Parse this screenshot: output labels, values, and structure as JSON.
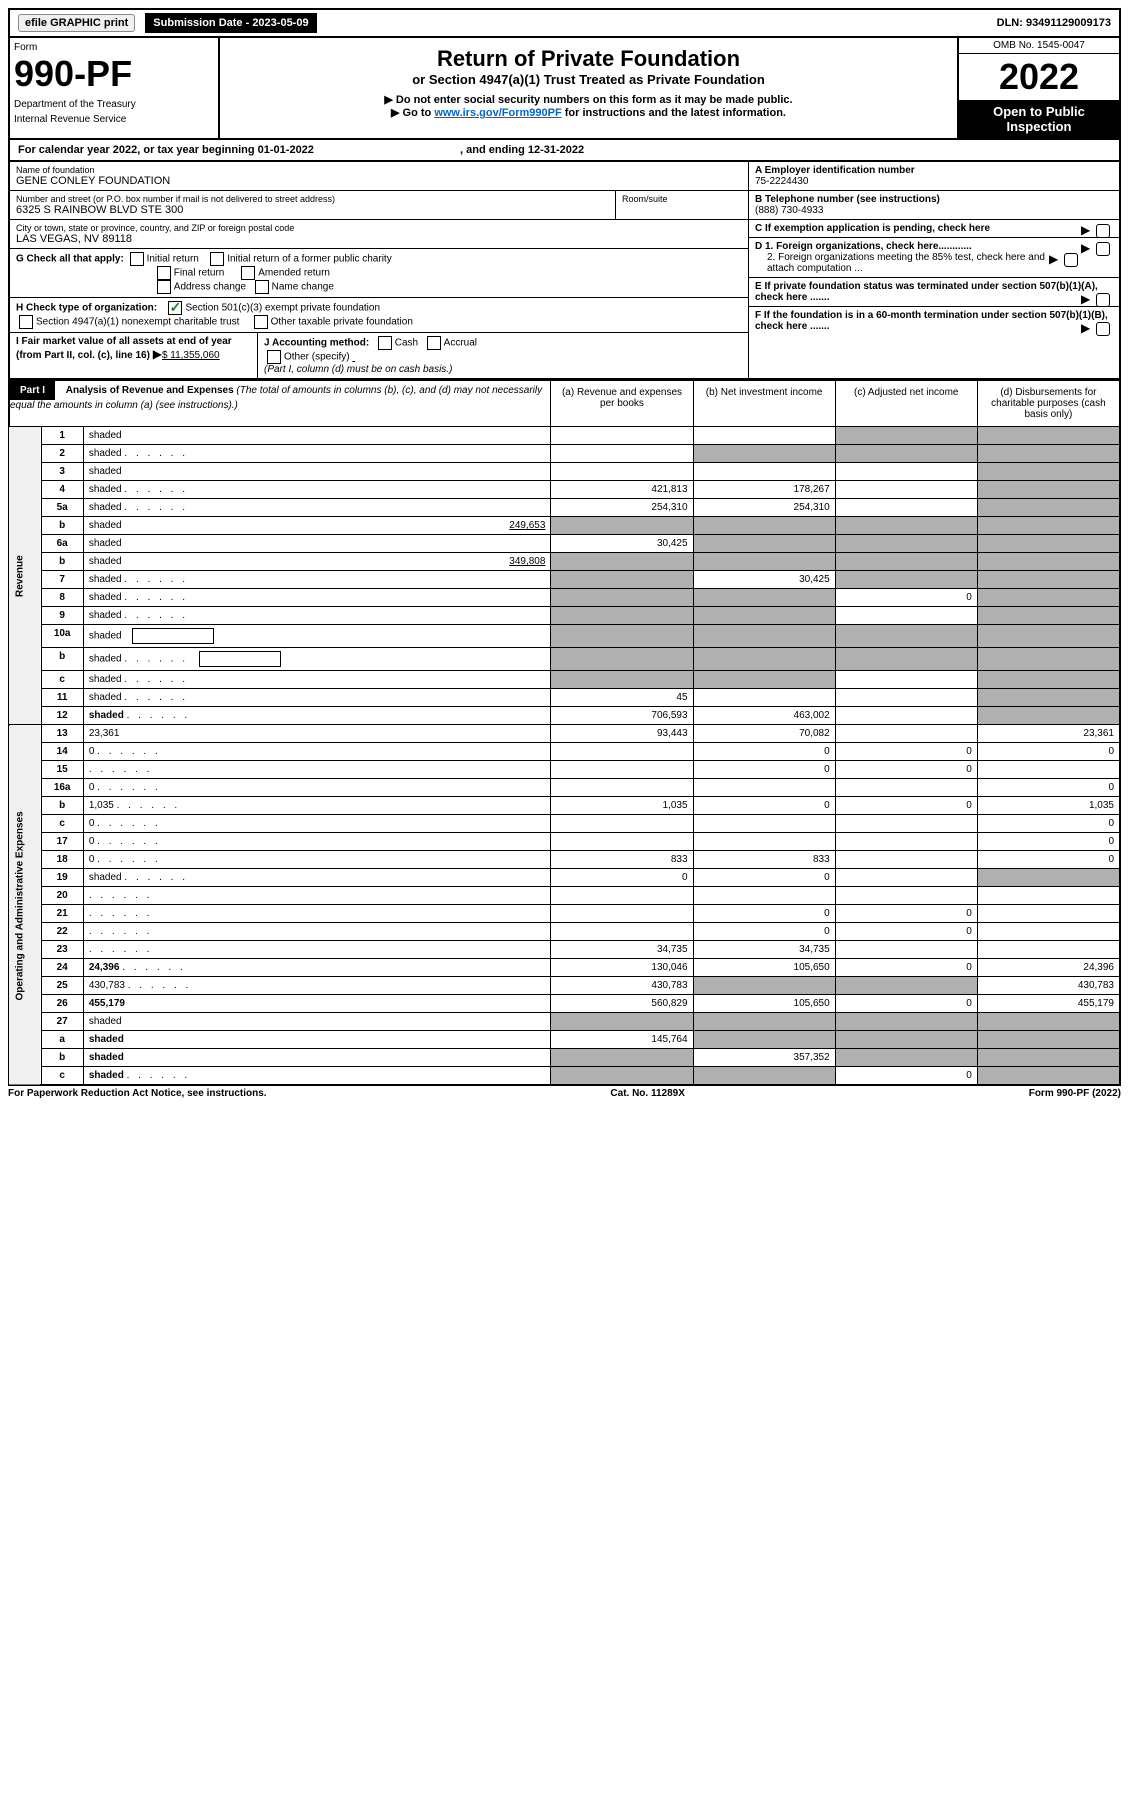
{
  "topbar": {
    "efile": "efile GRAPHIC print",
    "sub_label": "Submission Date - 2023-05-09",
    "dln": "DLN: 93491129009173"
  },
  "header": {
    "form_label": "Form",
    "form_num": "990-PF",
    "dept1": "Department of the Treasury",
    "dept2": "Internal Revenue Service",
    "title1": "Return of Private Foundation",
    "title2": "or Section 4947(a)(1) Trust Treated as Private Foundation",
    "warn": "▶ Do not enter social security numbers on this form as it may be made public.",
    "goto": "▶ Go to ",
    "goto_link": "www.irs.gov/Form990PF",
    "goto_rest": " for instructions and the latest information.",
    "omb": "OMB No. 1545-0047",
    "year": "2022",
    "open1": "Open to Public",
    "open2": "Inspection"
  },
  "cal": {
    "text1": "For calendar year 2022, or tax year beginning 01-01-2022",
    "text2": ", and ending 12-31-2022"
  },
  "info": {
    "name_label": "Name of foundation",
    "name": "GENE CONLEY FOUNDATION",
    "addr_label": "Number and street (or P.O. box number if mail is not delivered to street address)",
    "addr": "6325 S RAINBOW BLVD STE 300",
    "room_label": "Room/suite",
    "city_label": "City or town, state or province, country, and ZIP or foreign postal code",
    "city": "LAS VEGAS, NV  89118",
    "a_label": "A Employer identification number",
    "a_val": "75-2224430",
    "b_label": "B Telephone number (see instructions)",
    "b_val": "(888) 730-4933",
    "c_label": "C If exemption application is pending, check here",
    "d1": "D 1. Foreign organizations, check here............",
    "d2": "2. Foreign organizations meeting the 85% test, check here and attach computation ...",
    "e_label": "E  If private foundation status was terminated under section 507(b)(1)(A), check here .......",
    "f_label": "F  If the foundation is in a 60-month termination under section 507(b)(1)(B), check here .......",
    "g_label": "G Check all that apply:",
    "g_opts": [
      "Initial return",
      "Initial return of a former public charity",
      "Final return",
      "Amended return",
      "Address change",
      "Name change"
    ],
    "h_label": "H Check type of organization:",
    "h1": "Section 501(c)(3) exempt private foundation",
    "h2": "Section 4947(a)(1) nonexempt charitable trust",
    "h3": "Other taxable private foundation",
    "i_label": "I Fair market value of all assets at end of year (from Part II, col. (c), line 16)",
    "i_val": "$  11,355,060",
    "j_label": "J Accounting method:",
    "j_cash": "Cash",
    "j_acc": "Accrual",
    "j_other": "Other (specify)",
    "j_note": "(Part I, column (d) must be on cash basis.)"
  },
  "part1": {
    "label": "Part I",
    "title": "Analysis of Revenue and Expenses",
    "note": "(The total of amounts in columns (b), (c), and (d) may not necessarily equal the amounts in column (a) (see instructions).)",
    "cols": {
      "a": "(a)   Revenue and expenses per books",
      "b": "(b)   Net investment income",
      "c": "(c)   Adjusted net income",
      "d": "(d)   Disbursements for charitable purposes (cash basis only)"
    }
  },
  "side": {
    "rev": "Revenue",
    "exp": "Operating and Administrative Expenses"
  },
  "rows": [
    {
      "n": "1",
      "d": "shaded",
      "a": "",
      "b": "",
      "c": "shaded"
    },
    {
      "n": "2",
      "d": "shaded",
      "a": "",
      "b": "shaded",
      "c": "shaded",
      "dots": true
    },
    {
      "n": "3",
      "d": "shaded",
      "a": "",
      "b": "",
      "c": ""
    },
    {
      "n": "4",
      "d": "shaded",
      "a": "421,813",
      "b": "178,267",
      "c": "",
      "dots": true
    },
    {
      "n": "5a",
      "d": "shaded",
      "a": "254,310",
      "b": "254,310",
      "c": "",
      "dots": true
    },
    {
      "n": "b",
      "d": "shaded",
      "inline": "249,653",
      "a": "shaded",
      "b": "shaded",
      "c": "shaded"
    },
    {
      "n": "6a",
      "d": "shaded",
      "a": "30,425",
      "b": "shaded",
      "c": "shaded"
    },
    {
      "n": "b",
      "d": "shaded",
      "inline": "349,808",
      "a": "shaded",
      "b": "shaded",
      "c": "shaded"
    },
    {
      "n": "7",
      "d": "shaded",
      "a": "shaded",
      "b": "30,425",
      "c": "shaded",
      "dots": true
    },
    {
      "n": "8",
      "d": "shaded",
      "a": "shaded",
      "b": "shaded",
      "c": "0",
      "dots": true
    },
    {
      "n": "9",
      "d": "shaded",
      "a": "shaded",
      "b": "shaded",
      "c": "",
      "dots": true
    },
    {
      "n": "10a",
      "d": "shaded",
      "a": "shaded",
      "b": "shaded",
      "c": "shaded",
      "hasbox": true
    },
    {
      "n": "b",
      "d": "shaded",
      "a": "shaded",
      "b": "shaded",
      "c": "shaded",
      "hasbox": true,
      "dots": true
    },
    {
      "n": "c",
      "d": "shaded",
      "a": "shaded",
      "b": "shaded",
      "c": "",
      "dots": true
    },
    {
      "n": "11",
      "d": "shaded",
      "a": "45",
      "b": "",
      "c": "",
      "dots": true
    },
    {
      "n": "12",
      "d": "shaded",
      "a": "706,593",
      "b": "463,002",
      "c": "",
      "bold": true,
      "dots": true
    }
  ],
  "exp_rows": [
    {
      "n": "13",
      "d": "23,361",
      "a": "93,443",
      "b": "70,082",
      "c": ""
    },
    {
      "n": "14",
      "d": "0",
      "a": "",
      "b": "0",
      "c": "0",
      "dots": true
    },
    {
      "n": "15",
      "d": "",
      "a": "",
      "b": "0",
      "c": "0",
      "dots": true
    },
    {
      "n": "16a",
      "d": "0",
      "a": "",
      "b": "",
      "c": "",
      "dots": true
    },
    {
      "n": "b",
      "d": "1,035",
      "a": "1,035",
      "b": "0",
      "c": "0",
      "dots": true
    },
    {
      "n": "c",
      "d": "0",
      "a": "",
      "b": "",
      "c": "",
      "dots": true
    },
    {
      "n": "17",
      "d": "0",
      "a": "",
      "b": "",
      "c": "",
      "dots": true
    },
    {
      "n": "18",
      "d": "0",
      "a": "833",
      "b": "833",
      "c": "",
      "dots": true
    },
    {
      "n": "19",
      "d": "shaded",
      "a": "0",
      "b": "0",
      "c": "",
      "dots": true
    },
    {
      "n": "20",
      "d": "",
      "a": "",
      "b": "",
      "c": "",
      "dots": true
    },
    {
      "n": "21",
      "d": "",
      "a": "",
      "b": "0",
      "c": "0",
      "dots": true
    },
    {
      "n": "22",
      "d": "",
      "a": "",
      "b": "0",
      "c": "0",
      "dots": true
    },
    {
      "n": "23",
      "d": "",
      "a": "34,735",
      "b": "34,735",
      "c": "",
      "dots": true
    },
    {
      "n": "24",
      "d": "24,396",
      "a": "130,046",
      "b": "105,650",
      "c": "0",
      "bold": true,
      "dots": true
    },
    {
      "n": "25",
      "d": "430,783",
      "a": "430,783",
      "b": "shaded",
      "c": "shaded",
      "dots": true
    },
    {
      "n": "26",
      "d": "455,179",
      "a": "560,829",
      "b": "105,650",
      "c": "0",
      "bold": true
    },
    {
      "n": "27",
      "d": "shaded",
      "a": "shaded",
      "b": "shaded",
      "c": "shaded"
    },
    {
      "n": "a",
      "d": "shaded",
      "a": "145,764",
      "b": "shaded",
      "c": "shaded",
      "bold": true
    },
    {
      "n": "b",
      "d": "shaded",
      "a": "shaded",
      "b": "357,352",
      "c": "shaded",
      "bold": true
    },
    {
      "n": "c",
      "d": "shaded",
      "a": "shaded",
      "b": "shaded",
      "c": "0",
      "bold": true,
      "dots": true
    }
  ],
  "footer": {
    "left": "For Paperwork Reduction Act Notice, see instructions.",
    "mid": "Cat. No. 11289X",
    "right": "Form 990-PF (2022)"
  }
}
